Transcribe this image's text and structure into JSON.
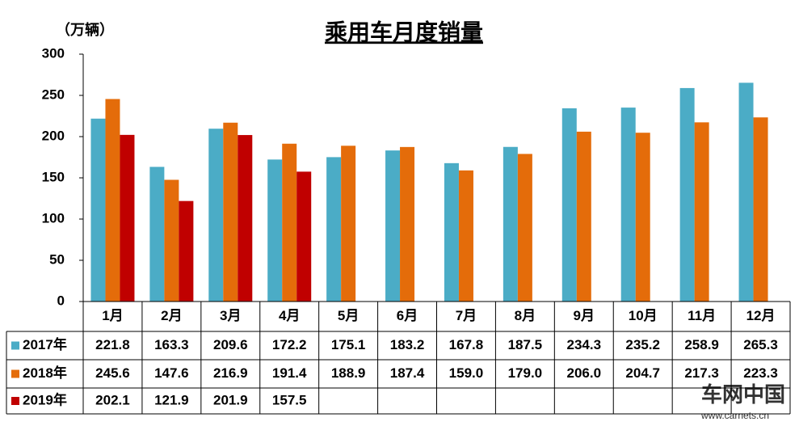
{
  "chart_data": {
    "type": "bar",
    "title": "乘用车月度销量",
    "unit_label": "（万辆）",
    "categories": [
      "1月",
      "2月",
      "3月",
      "4月",
      "5月",
      "6月",
      "7月",
      "8月",
      "9月",
      "10月",
      "11月",
      "12月"
    ],
    "series": [
      {
        "name": "2017年",
        "color": "#4bacc6",
        "values": [
          221.8,
          163.3,
          209.6,
          172.2,
          175.1,
          183.2,
          167.8,
          187.5,
          234.3,
          235.2,
          258.9,
          265.3
        ],
        "value_labels": [
          "221.8",
          "163.3",
          "209.6",
          "172.2",
          "175.1",
          "183.2",
          "167.8",
          "187.5",
          "234.3",
          "235.2",
          "258.9",
          "265.3"
        ]
      },
      {
        "name": "2018年",
        "color": "#e46c0a",
        "values": [
          245.6,
          147.6,
          216.9,
          191.4,
          188.9,
          187.4,
          159.0,
          179.0,
          206.0,
          204.7,
          217.3,
          223.3
        ],
        "value_labels": [
          "245.6",
          "147.6",
          "216.9",
          "191.4",
          "188.9",
          "187.4",
          "159.0",
          "179.0",
          "206.0",
          "204.7",
          "217.3",
          "223.3"
        ]
      },
      {
        "name": "2019年",
        "color": "#c00000",
        "values": [
          202.1,
          121.9,
          201.9,
          157.5,
          null,
          null,
          null,
          null,
          null,
          null,
          null,
          null
        ],
        "value_labels": [
          "202.1",
          "121.9",
          "201.9",
          "157.5",
          null,
          null,
          null,
          null,
          null,
          null,
          null,
          null
        ]
      }
    ],
    "ylim": [
      0,
      300
    ],
    "yticks": [
      0,
      50,
      100,
      150,
      200,
      250,
      300
    ],
    "grid": false,
    "watermark": {
      "brand": "车网中国",
      "url": "www.carnets.cn"
    }
  }
}
